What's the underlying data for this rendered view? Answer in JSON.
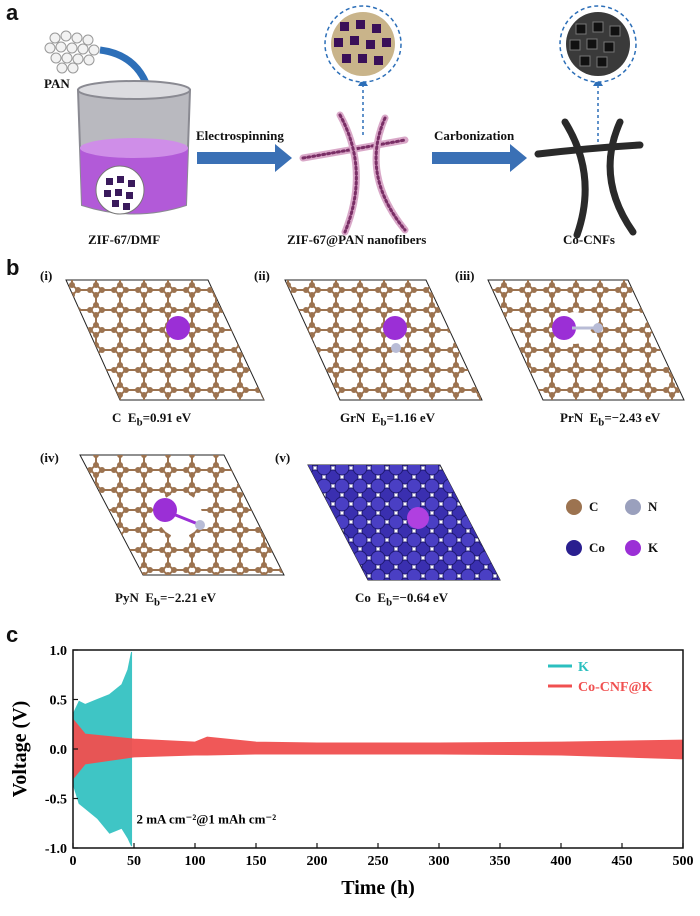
{
  "panel_a": {
    "letter": "a",
    "pan_label": "PAN",
    "step1": "Electrospinning",
    "step2": "Carbonization",
    "label_left": "ZIF-67/DMF",
    "label_mid": "ZIF-67@PAN nanofibers",
    "label_right": "Co-CNFs"
  },
  "panel_b": {
    "letter": "b",
    "structures": [
      {
        "index": "(i)",
        "species": "C",
        "eb": "=0.91 eV"
      },
      {
        "index": "(ii)",
        "species": "GrN",
        "eb": "=1.16 eV"
      },
      {
        "index": "(iii)",
        "species": "PrN",
        "eb": "=−2.43 eV"
      },
      {
        "index": "(iv)",
        "species": "PyN",
        "eb": "=−2.21 eV"
      },
      {
        "index": "(v)",
        "species": "Co",
        "eb": "=−0.64 eV"
      }
    ],
    "legend": [
      {
        "label": "C",
        "color": "#9c7350"
      },
      {
        "label": "N",
        "color": "#9aa0bd"
      },
      {
        "label": "Co",
        "color": "#2a1f8f"
      },
      {
        "label": "K",
        "color": "#9b2fd6"
      }
    ],
    "colors": {
      "carbon": "#9c7350",
      "nitrogen": "#b8bcd6",
      "cobalt": "#3a2fb0",
      "potassium": "#9b2fd6"
    }
  },
  "panel_c": {
    "letter": "c",
    "annotation": "2 mA cm⁻²@1 mAh cm⁻²",
    "chart_data": {
      "type": "area",
      "xlabel": "Time (h)",
      "ylabel": "Voltage (V)",
      "xlim": [
        0,
        500
      ],
      "ylim": [
        -1.0,
        1.0
      ],
      "xticks": [
        "0",
        "50",
        "100",
        "150",
        "200",
        "250",
        "300",
        "350",
        "400",
        "450",
        "500"
      ],
      "yticks": [
        "1.0",
        "0.5",
        "0.0",
        "-0.5",
        "-1.0"
      ],
      "legend_position": "top-right",
      "series": [
        {
          "name": "K",
          "color": "#2bbfbf",
          "x": [
            0,
            5,
            10,
            20,
            30,
            40,
            45,
            48
          ],
          "upper": [
            0.35,
            0.48,
            0.45,
            0.5,
            0.55,
            0.65,
            0.8,
            0.98
          ],
          "lower": [
            -0.35,
            -0.55,
            -0.6,
            -0.7,
            -0.85,
            -0.8,
            -0.9,
            -0.98
          ]
        },
        {
          "name": "Co-CNF@K",
          "color": "#f05050",
          "x": [
            0,
            10,
            50,
            100,
            110,
            150,
            200,
            300,
            400,
            450,
            500
          ],
          "upper": [
            0.3,
            0.15,
            0.1,
            0.07,
            0.12,
            0.07,
            0.06,
            0.06,
            0.07,
            0.08,
            0.09
          ],
          "lower": [
            -0.3,
            -0.15,
            -0.08,
            -0.06,
            -0.06,
            -0.05,
            -0.05,
            -0.05,
            -0.06,
            -0.08,
            -0.1
          ]
        }
      ]
    }
  }
}
